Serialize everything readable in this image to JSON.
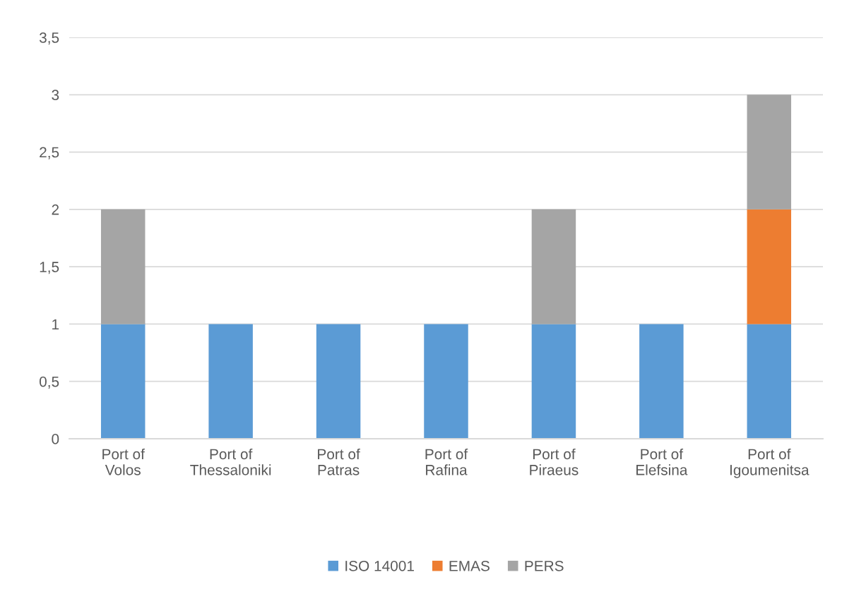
{
  "chart_data": {
    "type": "bar",
    "stacked": true,
    "categories": [
      "Port of\nVolos",
      "Port of\nThessaloniki",
      "Port of\nPatras",
      "Port of\nRafina",
      "Port of\nPiraeus",
      "Port of\nElefsina",
      "Port of\nIgoumenitsa"
    ],
    "series": [
      {
        "name": "ISO 14001",
        "color": "#5b9bd5",
        "values": [
          1,
          1,
          1,
          1,
          1,
          1,
          1
        ]
      },
      {
        "name": "EMAS",
        "color": "#ed7d31",
        "values": [
          null,
          null,
          null,
          null,
          null,
          null,
          1
        ]
      },
      {
        "name": "PERS",
        "color": "#a5a5a5",
        "values": [
          1,
          null,
          null,
          null,
          1,
          null,
          1
        ]
      }
    ],
    "ylim": [
      0,
      3.5
    ],
    "yticks": [
      0,
      {
        "value": 0.5,
        "label": "0,5"
      },
      1,
      {
        "value": 1.5,
        "label": "1,5"
      },
      2,
      {
        "value": 2.5,
        "label": "2,5"
      },
      3,
      {
        "value": 3.5,
        "label": "3,5"
      }
    ],
    "grid": "y",
    "legend": "bottom"
  }
}
